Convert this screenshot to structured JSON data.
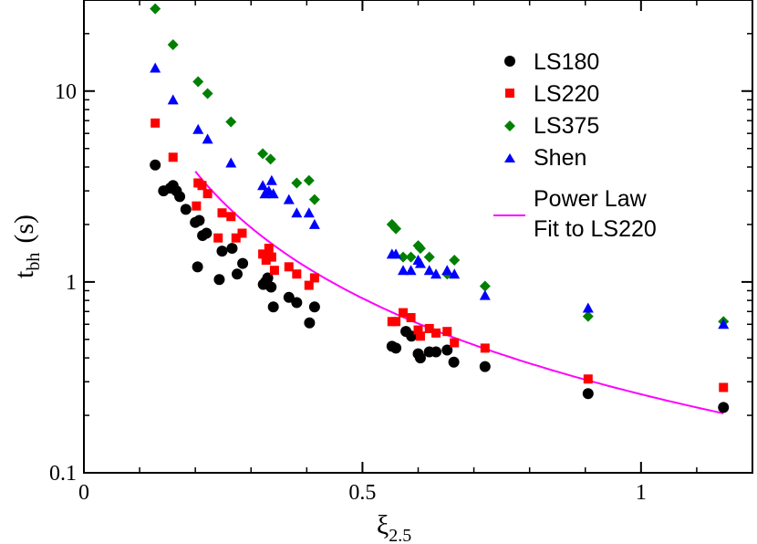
{
  "chart_data": {
    "type": "scatter",
    "title": "",
    "xlabel": "ξ",
    "xlabel_sub": "2.5",
    "ylabel": "t",
    "ylabel_sub": "bh",
    "ylabel_unit": "(s)",
    "xscale": "linear",
    "yscale": "log",
    "xlim": [
      0,
      1.2
    ],
    "ylim": [
      0.1,
      30
    ],
    "x_ticks": [
      {
        "value": 0,
        "label": "0"
      },
      {
        "value": 0.5,
        "label": "0.5"
      },
      {
        "value": 1,
        "label": "1"
      }
    ],
    "y_ticks": [
      {
        "value": 0.1,
        "label": "0.1"
      },
      {
        "value": 1,
        "label": "1"
      },
      {
        "value": 10,
        "label": "10"
      }
    ],
    "grid": false,
    "legend_position": "top-right",
    "series": [
      {
        "name": "LS180",
        "marker": "circle",
        "color": "#000000",
        "points": [
          [
            0.128,
            4.1
          ],
          [
            0.143,
            3.0
          ],
          [
            0.155,
            3.1
          ],
          [
            0.16,
            3.2
          ],
          [
            0.166,
            3.0
          ],
          [
            0.172,
            2.8
          ],
          [
            0.183,
            2.4
          ],
          [
            0.2,
            2.05
          ],
          [
            0.204,
            1.2
          ],
          [
            0.207,
            2.1
          ],
          [
            0.213,
            1.75
          ],
          [
            0.22,
            1.8
          ],
          [
            0.243,
            1.03
          ],
          [
            0.248,
            1.45
          ],
          [
            0.266,
            1.5
          ],
          [
            0.275,
            1.1
          ],
          [
            0.285,
            1.25
          ],
          [
            0.322,
            0.97
          ],
          [
            0.326,
            1.0
          ],
          [
            0.33,
            1.05
          ],
          [
            0.336,
            0.94
          ],
          [
            0.34,
            0.74
          ],
          [
            0.368,
            0.83
          ],
          [
            0.382,
            0.78
          ],
          [
            0.405,
            0.61
          ],
          [
            0.414,
            0.74
          ],
          [
            0.553,
            0.46
          ],
          [
            0.56,
            0.45
          ],
          [
            0.578,
            0.55
          ],
          [
            0.588,
            0.52
          ],
          [
            0.6,
            0.42
          ],
          [
            0.604,
            0.4
          ],
          [
            0.62,
            0.43
          ],
          [
            0.632,
            0.43
          ],
          [
            0.652,
            0.44
          ],
          [
            0.664,
            0.38
          ],
          [
            0.72,
            0.36
          ],
          [
            0.905,
            0.26
          ],
          [
            1.148,
            0.22
          ]
        ]
      },
      {
        "name": "LS220",
        "marker": "square",
        "color": "#ff0000",
        "points": [
          [
            0.128,
            6.8
          ],
          [
            0.16,
            4.5
          ],
          [
            0.202,
            2.5
          ],
          [
            0.205,
            3.3
          ],
          [
            0.212,
            3.2
          ],
          [
            0.222,
            2.9
          ],
          [
            0.241,
            1.7
          ],
          [
            0.248,
            2.3
          ],
          [
            0.264,
            2.2
          ],
          [
            0.273,
            1.7
          ],
          [
            0.284,
            1.8
          ],
          [
            0.321,
            1.4
          ],
          [
            0.327,
            1.3
          ],
          [
            0.332,
            1.5
          ],
          [
            0.337,
            1.35
          ],
          [
            0.342,
            1.15
          ],
          [
            0.368,
            1.2
          ],
          [
            0.382,
            1.1
          ],
          [
            0.404,
            0.96
          ],
          [
            0.414,
            1.05
          ],
          [
            0.553,
            0.62
          ],
          [
            0.56,
            0.62
          ],
          [
            0.573,
            0.69
          ],
          [
            0.587,
            0.65
          ],
          [
            0.6,
            0.56
          ],
          [
            0.604,
            0.52
          ],
          [
            0.62,
            0.57
          ],
          [
            0.632,
            0.54
          ],
          [
            0.652,
            0.55
          ],
          [
            0.665,
            0.48
          ],
          [
            0.72,
            0.45
          ],
          [
            0.905,
            0.31
          ],
          [
            1.148,
            0.28
          ]
        ]
      },
      {
        "name": "LS375",
        "marker": "diamond",
        "color": "#008000",
        "points": [
          [
            0.128,
            27.0
          ],
          [
            0.16,
            17.5
          ],
          [
            0.205,
            11.2
          ],
          [
            0.222,
            9.7
          ],
          [
            0.264,
            6.9
          ],
          [
            0.321,
            4.7
          ],
          [
            0.335,
            4.4
          ],
          [
            0.382,
            3.3
          ],
          [
            0.404,
            3.4
          ],
          [
            0.414,
            2.7
          ],
          [
            0.553,
            2.0
          ],
          [
            0.56,
            1.9
          ],
          [
            0.573,
            1.35
          ],
          [
            0.587,
            1.35
          ],
          [
            0.6,
            1.55
          ],
          [
            0.604,
            1.5
          ],
          [
            0.62,
            1.35
          ],
          [
            0.652,
            1.1
          ],
          [
            0.665,
            1.3
          ],
          [
            0.72,
            0.95
          ],
          [
            0.905,
            0.66
          ],
          [
            1.148,
            0.62
          ]
        ]
      },
      {
        "name": "Shen",
        "marker": "triangle",
        "color": "#0000ff",
        "points": [
          [
            0.128,
            13.2
          ],
          [
            0.16,
            9.0
          ],
          [
            0.205,
            6.3
          ],
          [
            0.222,
            5.6
          ],
          [
            0.264,
            4.2
          ],
          [
            0.321,
            3.2
          ],
          [
            0.325,
            2.9
          ],
          [
            0.332,
            3.0
          ],
          [
            0.337,
            3.4
          ],
          [
            0.34,
            2.9
          ],
          [
            0.368,
            2.7
          ],
          [
            0.382,
            2.3
          ],
          [
            0.404,
            2.3
          ],
          [
            0.414,
            2.0
          ],
          [
            0.553,
            1.4
          ],
          [
            0.56,
            1.4
          ],
          [
            0.573,
            1.15
          ],
          [
            0.587,
            1.15
          ],
          [
            0.6,
            1.3
          ],
          [
            0.604,
            1.25
          ],
          [
            0.62,
            1.15
          ],
          [
            0.632,
            1.1
          ],
          [
            0.652,
            1.15
          ],
          [
            0.665,
            1.1
          ],
          [
            0.72,
            0.85
          ],
          [
            0.905,
            0.73
          ],
          [
            1.148,
            0.6
          ]
        ]
      }
    ],
    "fit_line": {
      "name_line1": "Power Law",
      "name_line2": "Fit to LS220",
      "color": "#ff00ff",
      "x_range": [
        0.2,
        1.148
      ],
      "coefficient": 0.258,
      "exponent": -1.67
    }
  }
}
